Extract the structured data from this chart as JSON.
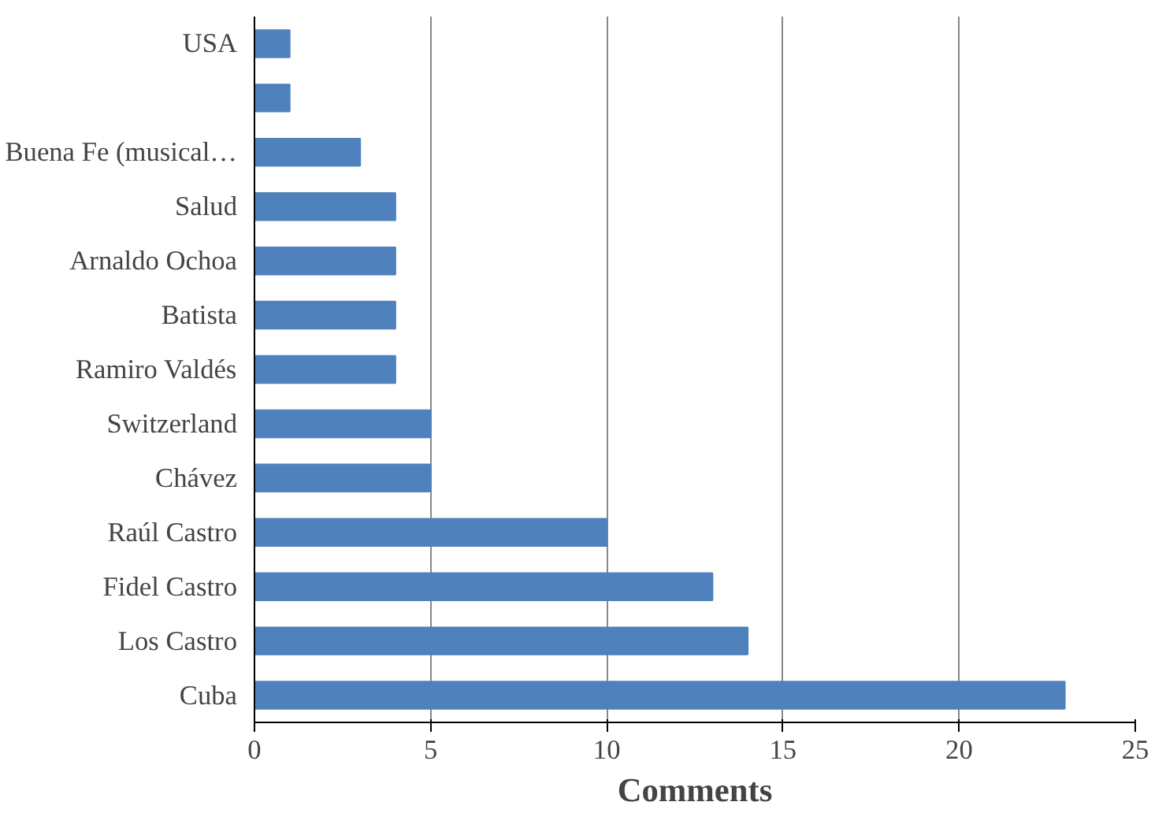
{
  "chart_data": {
    "type": "bar",
    "orientation": "horizontal",
    "xlabel": "Comments",
    "categories": [
      "USA",
      null,
      "Buena Fe (musical…",
      "Salud",
      "Arnaldo Ochoa",
      "Batista",
      "Ramiro Valdés",
      "Switzerland",
      "Chávez",
      "Raúl Castro",
      "Fidel Castro",
      "Los Castro",
      "Cuba"
    ],
    "values": [
      1,
      1,
      3,
      4,
      4,
      4,
      4,
      5,
      5,
      10,
      13,
      14,
      23
    ],
    "color": "#4f81bd",
    "xlim": [
      0,
      25
    ],
    "xticks": [
      0,
      5,
      10,
      15,
      20,
      25
    ],
    "grid": "x"
  }
}
